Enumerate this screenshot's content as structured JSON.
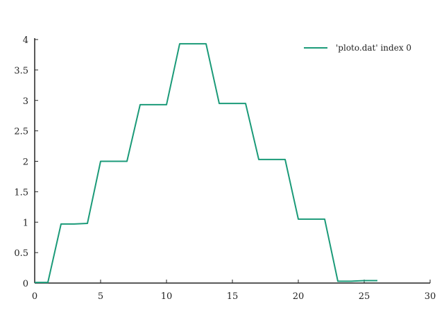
{
  "chart_data": {
    "type": "line",
    "xlim": [
      0,
      30
    ],
    "ylim": [
      0,
      4
    ],
    "xticks": [
      "0",
      "5",
      "10",
      "15",
      "20",
      "25",
      "30"
    ],
    "yticks": [
      "0",
      "0.5",
      "1",
      "1.5",
      "2",
      "2.5",
      "3",
      "3.5",
      "4"
    ],
    "grid": false,
    "legend_position": "top-right",
    "series": [
      {
        "name": "'ploto.dat' index 0",
        "color": "#1a9a78",
        "x": [
          0,
          1,
          2,
          3,
          4,
          5,
          6,
          7,
          8,
          9,
          10,
          11,
          12,
          13,
          14,
          15,
          16,
          17,
          18,
          19,
          20,
          21,
          22,
          23,
          24,
          25,
          26
        ],
        "y": [
          0.01,
          0.01,
          0.97,
          0.97,
          0.98,
          2.0,
          2.0,
          2.0,
          2.93,
          2.93,
          2.93,
          3.93,
          3.93,
          3.93,
          2.95,
          2.95,
          2.95,
          2.03,
          2.03,
          2.03,
          1.05,
          1.05,
          1.05,
          0.03,
          0.03,
          0.04,
          0.04
        ]
      }
    ]
  }
}
